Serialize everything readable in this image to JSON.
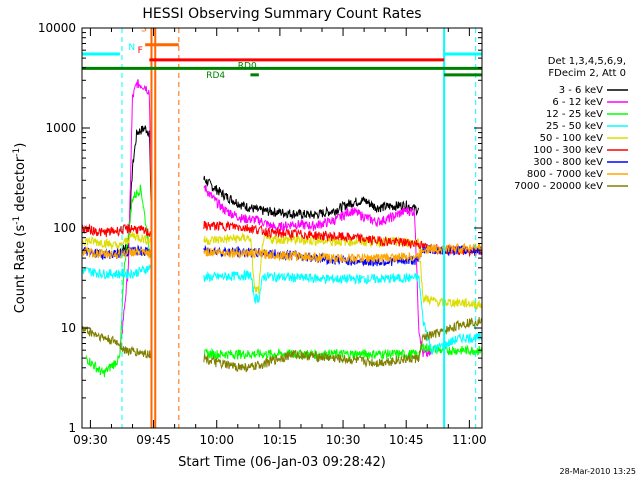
{
  "chart_data": {
    "type": "line",
    "title": "HESSI Observing Summary Count Rates",
    "xlabel": "Start Time (06-Jan-03 09:28:42)",
    "ylabel": "Count Rate (s⁻¹ detector⁻¹)",
    "ylabel_main": "Count Rate (s",
    "ylabel_sup1": "-1",
    "ylabel_mid": " detector",
    "ylabel_sup2": "-1",
    "ylabel_end": ")",
    "y_scale": "log",
    "ylim": [
      1,
      10000
    ],
    "x_range_minutes": [
      0,
      95
    ],
    "x_ticks": [
      {
        "t": 2,
        "label": "09:30"
      },
      {
        "t": 17,
        "label": "09:45"
      },
      {
        "t": 32,
        "label": "10:00"
      },
      {
        "t": 47,
        "label": "10:15"
      },
      {
        "t": 62,
        "label": "10:30"
      },
      {
        "t": 77,
        "label": "10:45"
      },
      {
        "t": 92,
        "label": "11:00"
      }
    ],
    "y_ticks": [
      {
        "v": 1,
        "label": "1"
      },
      {
        "v": 10,
        "label": "10"
      },
      {
        "v": 100,
        "label": "100"
      },
      {
        "v": 1000,
        "label": "1000"
      },
      {
        "v": 10000,
        "label": "10000"
      }
    ],
    "legend_title": [
      "Det 1,3,4,5,6,9,",
      "FDecim 2, Att 0"
    ],
    "legend_placement": "right",
    "series": [
      {
        "name": "3 - 6 keV",
        "color": "#000000",
        "points": [
          [
            9,
            60
          ],
          [
            11,
            65
          ],
          [
            12,
            400
          ],
          [
            13,
            900
          ],
          [
            15,
            1000
          ],
          [
            16,
            900
          ],
          [
            16.5,
            120
          ],
          [
            29,
            310
          ],
          [
            31,
            260
          ],
          [
            34,
            210
          ],
          [
            38,
            170
          ],
          [
            42,
            150
          ],
          [
            50,
            140
          ],
          [
            55,
            135
          ],
          [
            60,
            150
          ],
          [
            64,
            180
          ],
          [
            67,
            190
          ],
          [
            70,
            160
          ],
          [
            73,
            165
          ],
          [
            77,
            170
          ],
          [
            80,
            150
          ]
        ]
      },
      {
        "name": "6 - 12 keV",
        "color": "#ff00ff",
        "points": [
          [
            9,
            5.5
          ],
          [
            11,
            40
          ],
          [
            12,
            2000
          ],
          [
            13,
            2800
          ],
          [
            15,
            2600
          ],
          [
            16,
            2300
          ],
          [
            16.5,
            130
          ],
          [
            29,
            260
          ],
          [
            31,
            200
          ],
          [
            34,
            150
          ],
          [
            38,
            125
          ],
          [
            42,
            120
          ],
          [
            46,
            100
          ],
          [
            50,
            110
          ],
          [
            55,
            105
          ],
          [
            60,
            120
          ],
          [
            64,
            150
          ],
          [
            67,
            130
          ],
          [
            70,
            115
          ],
          [
            73,
            125
          ],
          [
            77,
            150
          ],
          [
            79,
            145
          ],
          [
            80,
            10
          ],
          [
            81,
            5.5
          ],
          [
            83,
            5.5
          ]
        ]
      },
      {
        "name": "12 - 25 keV",
        "color": "#00ff00",
        "points": [
          [
            1,
            5
          ],
          [
            5,
            3.5
          ],
          [
            9,
            5
          ],
          [
            10,
            40
          ],
          [
            12,
            200
          ],
          [
            14,
            250
          ],
          [
            16,
            60
          ],
          [
            29,
            5.5
          ],
          [
            40,
            5.5
          ],
          [
            50,
            5.5
          ],
          [
            60,
            5.5
          ],
          [
            70,
            5.5
          ],
          [
            80,
            5.5
          ],
          [
            81,
            6.5
          ],
          [
            85,
            6
          ],
          [
            90,
            6
          ],
          [
            95,
            6
          ]
        ]
      },
      {
        "name": "25 - 50 keV",
        "color": "#00ffff",
        "points": [
          [
            0,
            38
          ],
          [
            5,
            35
          ],
          [
            10,
            35
          ],
          [
            12,
            35
          ],
          [
            16,
            40
          ],
          [
            29,
            32
          ],
          [
            35,
            33
          ],
          [
            40,
            34
          ],
          [
            41,
            20
          ],
          [
            42,
            20
          ],
          [
            43,
            33
          ],
          [
            50,
            32
          ],
          [
            60,
            31
          ],
          [
            70,
            31
          ],
          [
            80,
            32
          ],
          [
            81,
            12
          ],
          [
            83,
            6
          ],
          [
            90,
            8
          ],
          [
            95,
            8
          ]
        ]
      },
      {
        "name": "50 - 100 keV",
        "color": "#dddd00",
        "points": [
          [
            0,
            75
          ],
          [
            5,
            72
          ],
          [
            9,
            65
          ],
          [
            12,
            85
          ],
          [
            16,
            75
          ],
          [
            29,
            75
          ],
          [
            35,
            78
          ],
          [
            40,
            80
          ],
          [
            41,
            24
          ],
          [
            42,
            24
          ],
          [
            43,
            78
          ],
          [
            50,
            76
          ],
          [
            60,
            74
          ],
          [
            70,
            73
          ],
          [
            80,
            72
          ],
          [
            81,
            20
          ],
          [
            85,
            18
          ],
          [
            90,
            18
          ],
          [
            95,
            17
          ]
        ]
      },
      {
        "name": "100 - 300 keV",
        "color": "#ff0000",
        "points": [
          [
            0,
            100
          ],
          [
            5,
            90
          ],
          [
            9,
            95
          ],
          [
            12,
            100
          ],
          [
            16,
            90
          ],
          [
            29,
            105
          ],
          [
            35,
            105
          ],
          [
            40,
            100
          ],
          [
            45,
            90
          ],
          [
            55,
            85
          ],
          [
            65,
            80
          ],
          [
            70,
            75
          ],
          [
            80,
            70
          ],
          [
            81,
            65
          ],
          [
            85,
            62
          ],
          [
            90,
            60
          ],
          [
            95,
            57
          ]
        ]
      },
      {
        "name": "300 - 800 keV",
        "color": "#0000ff",
        "points": [
          [
            0,
            60
          ],
          [
            5,
            55
          ],
          [
            9,
            55
          ],
          [
            12,
            60
          ],
          [
            16,
            58
          ],
          [
            29,
            60
          ],
          [
            35,
            58
          ],
          [
            40,
            57
          ],
          [
            50,
            54
          ],
          [
            60,
            48
          ],
          [
            70,
            46
          ],
          [
            80,
            48
          ],
          [
            81,
            62
          ],
          [
            85,
            60
          ],
          [
            90,
            60
          ],
          [
            95,
            60
          ]
        ]
      },
      {
        "name": "800 - 7000 keV",
        "color": "#ffa500",
        "points": [
          [
            0,
            58
          ],
          [
            5,
            55
          ],
          [
            9,
            55
          ],
          [
            12,
            58
          ],
          [
            16,
            55
          ],
          [
            29,
            58
          ],
          [
            35,
            57
          ],
          [
            40,
            56
          ],
          [
            50,
            53
          ],
          [
            60,
            50
          ],
          [
            70,
            50
          ],
          [
            80,
            52
          ],
          [
            81,
            62
          ],
          [
            85,
            62
          ],
          [
            90,
            63
          ],
          [
            95,
            64
          ]
        ]
      },
      {
        "name": "7000 - 20000 keV",
        "color": "#808000",
        "points": [
          [
            0,
            10
          ],
          [
            5,
            8
          ],
          [
            9,
            7
          ],
          [
            10,
            6
          ],
          [
            16,
            5.5
          ],
          [
            29,
            5
          ],
          [
            32,
            4.5
          ],
          [
            35,
            4.2
          ],
          [
            40,
            4
          ],
          [
            50,
            5.5
          ],
          [
            60,
            5
          ],
          [
            70,
            4.5
          ],
          [
            75,
            4.8
          ],
          [
            80,
            5
          ],
          [
            81,
            8
          ],
          [
            85,
            9
          ],
          [
            90,
            11
          ],
          [
            95,
            12
          ]
        ]
      }
    ],
    "annotations": [
      {
        "label": "N",
        "color": "#00ffff"
      },
      {
        "label": "S",
        "color": "#ff6600"
      },
      {
        "label": "F",
        "color": "#ff0000"
      },
      {
        "label": "RD4",
        "color": "#008000"
      },
      {
        "label": "RD0",
        "color": "#008000"
      }
    ],
    "flag_bars": [
      {
        "name": "N",
        "color": "#00ffff",
        "value": 5500,
        "segments": [
          [
            0,
            9
          ],
          [
            86,
            95
          ]
        ]
      },
      {
        "name": "F",
        "color": "#ff0000",
        "value": 4800,
        "segments": [
          [
            16,
            86
          ]
        ]
      },
      {
        "name": "S",
        "color": "#ff6600",
        "value": 6800,
        "segments": [
          [
            15,
            23
          ]
        ]
      },
      {
        "name": "RD0",
        "color": "#008000",
        "value": 3950,
        "segments": [
          [
            0,
            86
          ],
          [
            86,
            95
          ]
        ]
      },
      {
        "name": "RD4",
        "color": "#008000",
        "value": 3400,
        "segments": [
          [
            40,
            42
          ],
          [
            86,
            95
          ]
        ]
      }
    ],
    "vlines": [
      {
        "t": 9.5,
        "color": "#00ffff",
        "style": "dashed"
      },
      {
        "t": 16.5,
        "color": "#ff6600",
        "style": "solid"
      },
      {
        "t": 17.4,
        "color": "#ff6600",
        "style": "solid"
      },
      {
        "t": 23,
        "color": "#ff6600",
        "style": "dashed"
      },
      {
        "t": 86,
        "color": "#00ffff",
        "style": "solid"
      },
      {
        "t": 93.5,
        "color": "#00ffff",
        "style": "dashed"
      }
    ],
    "footer_date": "28-Mar-2010 13:25"
  }
}
